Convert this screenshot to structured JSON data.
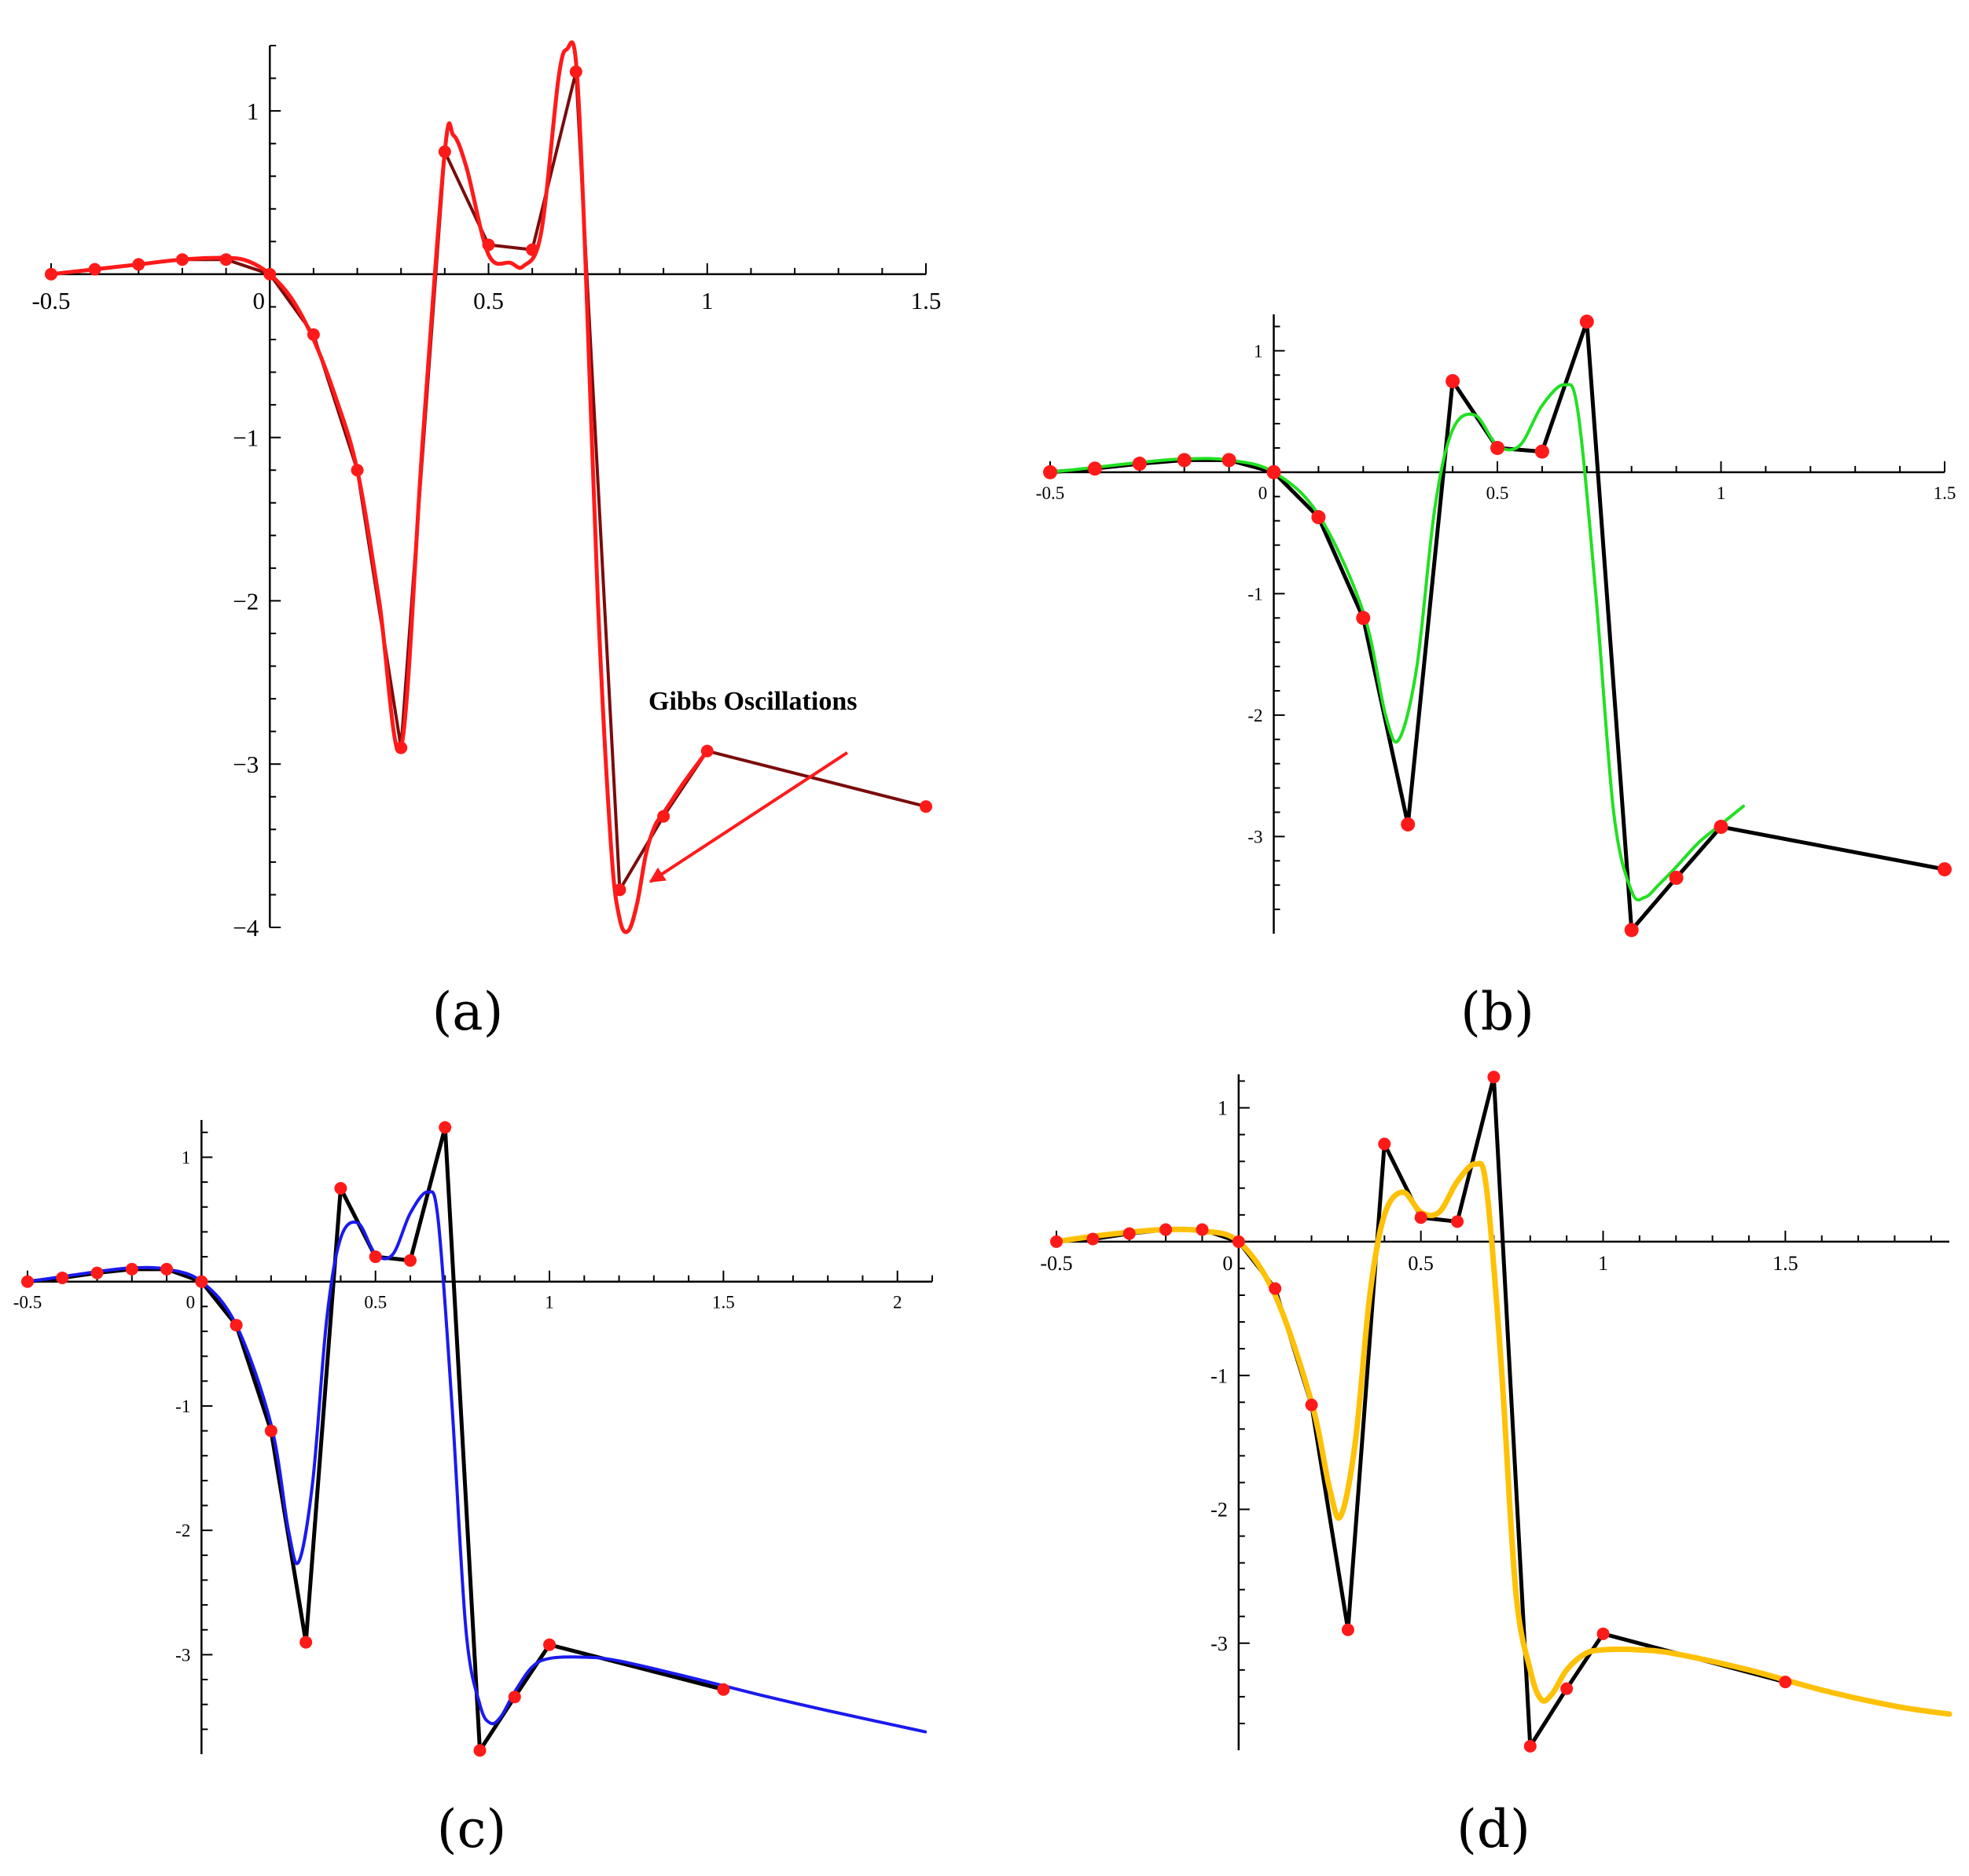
{
  "figure": {
    "panel_labels": [
      "(a)",
      "(b)",
      "(c)",
      "(d)"
    ],
    "colors": {
      "points": "#ff1a1a",
      "polyline_a": "#7a0c0c",
      "polyline": "#000000",
      "curve_a": "#ff1a1a",
      "curve_b": "#22e022",
      "curve_c": "#1a1aee",
      "curve_d": "#ffc107",
      "arrow": "#ff1a1a"
    }
  },
  "chart_data": [
    {
      "id": "a",
      "type": "line",
      "title": "",
      "xlabel": "",
      "ylabel": "",
      "panel_label": "(a)",
      "xlim": [
        -0.5,
        1.5
      ],
      "ylim": [
        -4.0,
        1.4
      ],
      "xticks": [
        -0.5,
        0,
        0.5,
        1,
        1.5
      ],
      "xtick_labels": [
        "-0.5",
        "0",
        "0.5",
        "1",
        "1.5"
      ],
      "yticks": [
        -4,
        -3,
        -2,
        -1,
        1
      ],
      "ytick_labels": [
        "−4",
        "−3",
        "−2",
        "−1",
        "1"
      ],
      "series": [
        {
          "name": "data points (polyline)",
          "x": [
            -0.5,
            -0.4,
            -0.3,
            -0.2,
            -0.1,
            0.0,
            0.1,
            0.2,
            0.3,
            0.4,
            0.5,
            0.6,
            0.7,
            0.8,
            0.9,
            1.0,
            1.5
          ],
          "y": [
            0.0,
            0.03,
            0.06,
            0.09,
            0.09,
            0.0,
            -0.37,
            -1.2,
            -2.9,
            0.75,
            0.18,
            0.15,
            1.24,
            -3.77,
            -3.32,
            -2.92,
            -3.26
          ]
        },
        {
          "name": "interpolant",
          "x": [
            -0.5,
            -0.4,
            -0.3,
            -0.2,
            -0.1,
            -0.05,
            0.0,
            0.05,
            0.1,
            0.15,
            0.2,
            0.25,
            0.3,
            0.35,
            0.4,
            0.42,
            0.45,
            0.5,
            0.55,
            0.58,
            0.62,
            0.66,
            0.68,
            0.7,
            0.72,
            0.75,
            0.78,
            0.8,
            0.82,
            0.84,
            0.86,
            0.88,
            0.9,
            0.95,
            1.0
          ],
          "y": [
            0.0,
            0.03,
            0.06,
            0.09,
            0.1,
            0.08,
            0.0,
            -0.15,
            -0.4,
            -0.75,
            -1.2,
            -2.0,
            -2.9,
            -1.0,
            0.75,
            0.85,
            0.65,
            0.12,
            0.07,
            0.05,
            0.25,
            1.2,
            1.38,
            1.3,
            0.2,
            -2.0,
            -3.5,
            -3.95,
            -4.02,
            -3.85,
            -3.55,
            -3.38,
            -3.3,
            -3.1,
            -2.92
          ]
        }
      ],
      "annotations": [
        {
          "text": "Gibbs Oscillations",
          "x": 1.25,
          "y": -2.7
        }
      ]
    },
    {
      "id": "b",
      "type": "line",
      "title": "",
      "xlabel": "",
      "ylabel": "",
      "panel_label": "(b)",
      "xlim": [
        -0.5,
        1.5
      ],
      "ylim": [
        -3.8,
        1.3
      ],
      "xticks": [
        -0.5,
        0,
        0.5,
        1,
        1.5
      ],
      "xtick_labels": [
        "-0.5",
        "0",
        "0.5",
        "1",
        "1.5"
      ],
      "yticks": [
        -3,
        -2,
        -1,
        1
      ],
      "ytick_labels": [
        "-3",
        "-2",
        "-1",
        "1"
      ],
      "series": [
        {
          "name": "data points (polyline)",
          "x": [
            -0.5,
            -0.4,
            -0.3,
            -0.2,
            -0.1,
            0.0,
            0.1,
            0.2,
            0.3,
            0.4,
            0.5,
            0.6,
            0.7,
            0.8,
            0.9,
            1.0,
            1.5
          ],
          "y": [
            0.0,
            0.03,
            0.07,
            0.1,
            0.1,
            0.0,
            -0.37,
            -1.2,
            -2.9,
            0.75,
            0.2,
            0.17,
            1.24,
            -3.77,
            -3.34,
            -2.92,
            -3.27
          ]
        },
        {
          "name": "approximant",
          "x": [
            -0.5,
            -0.4,
            -0.3,
            -0.2,
            -0.1,
            0.0,
            0.1,
            0.2,
            0.25,
            0.28,
            0.32,
            0.36,
            0.4,
            0.45,
            0.5,
            0.55,
            0.6,
            0.65,
            0.68,
            0.72,
            0.76,
            0.8,
            0.83,
            0.86,
            0.9,
            0.95,
            1.0,
            1.05
          ],
          "y": [
            0.0,
            0.04,
            0.08,
            0.11,
            0.1,
            0.0,
            -0.35,
            -1.15,
            -2.0,
            -2.2,
            -1.6,
            -0.3,
            0.35,
            0.47,
            0.22,
            0.22,
            0.55,
            0.72,
            0.5,
            -1.0,
            -2.8,
            -3.45,
            -3.5,
            -3.4,
            -3.25,
            -3.05,
            -2.9,
            -2.75
          ]
        }
      ]
    },
    {
      "id": "c",
      "type": "line",
      "title": "",
      "xlabel": "",
      "ylabel": "",
      "panel_label": "(c)",
      "xlim": [
        -0.5,
        2.1
      ],
      "ylim": [
        -3.8,
        1.3
      ],
      "xticks": [
        -0.5,
        0,
        0.5,
        1,
        1.5,
        2
      ],
      "xtick_labels": [
        "-0.5",
        "0",
        "0.5",
        "1",
        "1.5",
        "2"
      ],
      "yticks": [
        -3,
        -2,
        -1,
        1
      ],
      "ytick_labels": [
        "-3",
        "-2",
        "-1",
        "1"
      ],
      "series": [
        {
          "name": "data points (polyline)",
          "x": [
            -0.5,
            -0.4,
            -0.3,
            -0.2,
            -0.1,
            0.0,
            0.1,
            0.2,
            0.3,
            0.4,
            0.5,
            0.6,
            0.7,
            0.8,
            0.9,
            1.0,
            1.5
          ],
          "y": [
            0.0,
            0.03,
            0.07,
            0.1,
            0.1,
            0.0,
            -0.35,
            -1.2,
            -2.9,
            0.75,
            0.2,
            0.17,
            1.24,
            -3.77,
            -3.34,
            -2.92,
            -3.28
          ]
        },
        {
          "name": "approximant",
          "x": [
            -0.5,
            -0.4,
            -0.3,
            -0.2,
            -0.1,
            0.0,
            0.1,
            0.2,
            0.25,
            0.28,
            0.32,
            0.36,
            0.4,
            0.45,
            0.5,
            0.55,
            0.6,
            0.65,
            0.68,
            0.72,
            0.76,
            0.8,
            0.83,
            0.86,
            0.9,
            0.95,
            1.0,
            1.1,
            1.2,
            1.4,
            1.6,
            1.8,
            2.08
          ],
          "y": [
            0.0,
            0.04,
            0.08,
            0.11,
            0.1,
            0.0,
            -0.35,
            -1.15,
            -2.0,
            -2.25,
            -1.6,
            -0.3,
            0.35,
            0.47,
            0.22,
            0.22,
            0.55,
            0.72,
            0.5,
            -1.0,
            -2.8,
            -3.4,
            -3.55,
            -3.5,
            -3.3,
            -3.1,
            -3.03,
            -3.02,
            -3.05,
            -3.18,
            -3.32,
            -3.45,
            -3.62
          ]
        }
      ]
    },
    {
      "id": "d",
      "type": "line",
      "title": "",
      "xlabel": "",
      "ylabel": "",
      "panel_label": "(d)",
      "xlim": [
        -0.5,
        1.95
      ],
      "ylim": [
        -3.8,
        1.25
      ],
      "xticks": [
        -0.5,
        0,
        0.5,
        1,
        1.5
      ],
      "xtick_labels": [
        "-0.5",
        "0",
        "0.5",
        "1",
        "1.5"
      ],
      "yticks": [
        -3,
        -2,
        -1,
        1
      ],
      "ytick_labels": [
        "-3",
        "-2",
        "-1",
        "1"
      ],
      "series": [
        {
          "name": "data points (polyline)",
          "x": [
            -0.5,
            -0.4,
            -0.3,
            -0.2,
            -0.1,
            0.0,
            0.1,
            0.2,
            0.3,
            0.4,
            0.5,
            0.6,
            0.7,
            0.8,
            0.9,
            1.0,
            1.5
          ],
          "y": [
            0.0,
            0.02,
            0.06,
            0.09,
            0.09,
            0.0,
            -0.35,
            -1.22,
            -2.9,
            0.73,
            0.18,
            0.15,
            1.23,
            -3.77,
            -3.34,
            -2.93,
            -3.29
          ]
        },
        {
          "name": "approximant",
          "x": [
            -0.5,
            -0.4,
            -0.3,
            -0.2,
            -0.1,
            0.0,
            0.1,
            0.2,
            0.25,
            0.28,
            0.32,
            0.36,
            0.4,
            0.45,
            0.5,
            0.55,
            0.6,
            0.65,
            0.68,
            0.72,
            0.76,
            0.8,
            0.83,
            0.86,
            0.9,
            0.95,
            1.0,
            1.1,
            1.2,
            1.4,
            1.6,
            1.8,
            1.95
          ],
          "y": [
            0.0,
            0.04,
            0.07,
            0.09,
            0.08,
            0.0,
            -0.4,
            -1.2,
            -1.85,
            -2.05,
            -1.5,
            -0.4,
            0.2,
            0.37,
            0.22,
            0.22,
            0.45,
            0.58,
            0.4,
            -0.9,
            -2.6,
            -3.2,
            -3.42,
            -3.38,
            -3.2,
            -3.08,
            -3.05,
            -3.05,
            -3.08,
            -3.2,
            -3.35,
            -3.47,
            -3.53
          ]
        }
      ]
    }
  ]
}
